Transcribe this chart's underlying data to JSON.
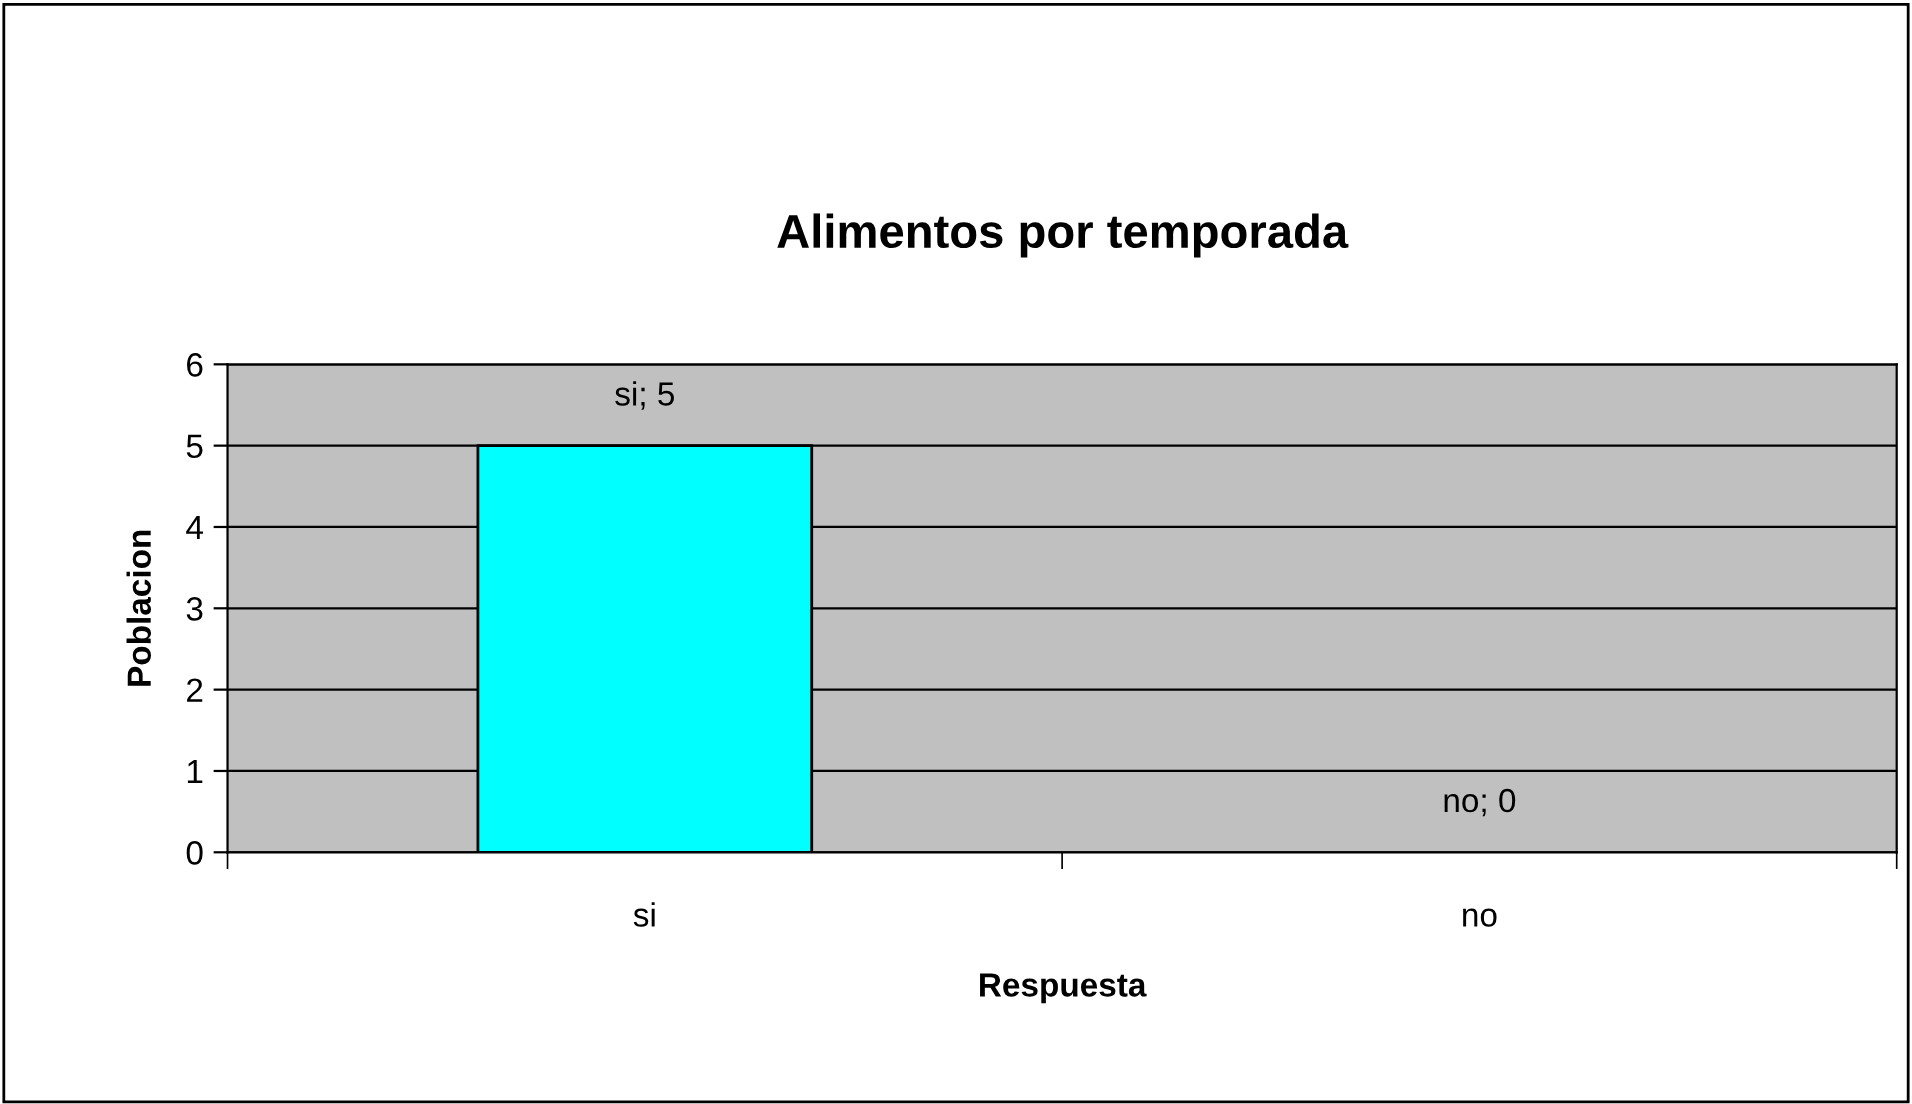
{
  "chart_data": {
    "type": "bar",
    "title": "Alimentos por temporada",
    "xlabel": "Respuesta",
    "ylabel": "Poblacion",
    "categories": [
      "si",
      "no"
    ],
    "series": [
      {
        "color": "#00ffff",
        "values": [
          5,
          0
        ],
        "value_labels": [
          "si; 5",
          "no; 0"
        ]
      }
    ],
    "ylim": [
      0,
      6
    ],
    "yticks": [
      0,
      1,
      2,
      3,
      4,
      5,
      6
    ],
    "grid": "y",
    "legend": false
  }
}
